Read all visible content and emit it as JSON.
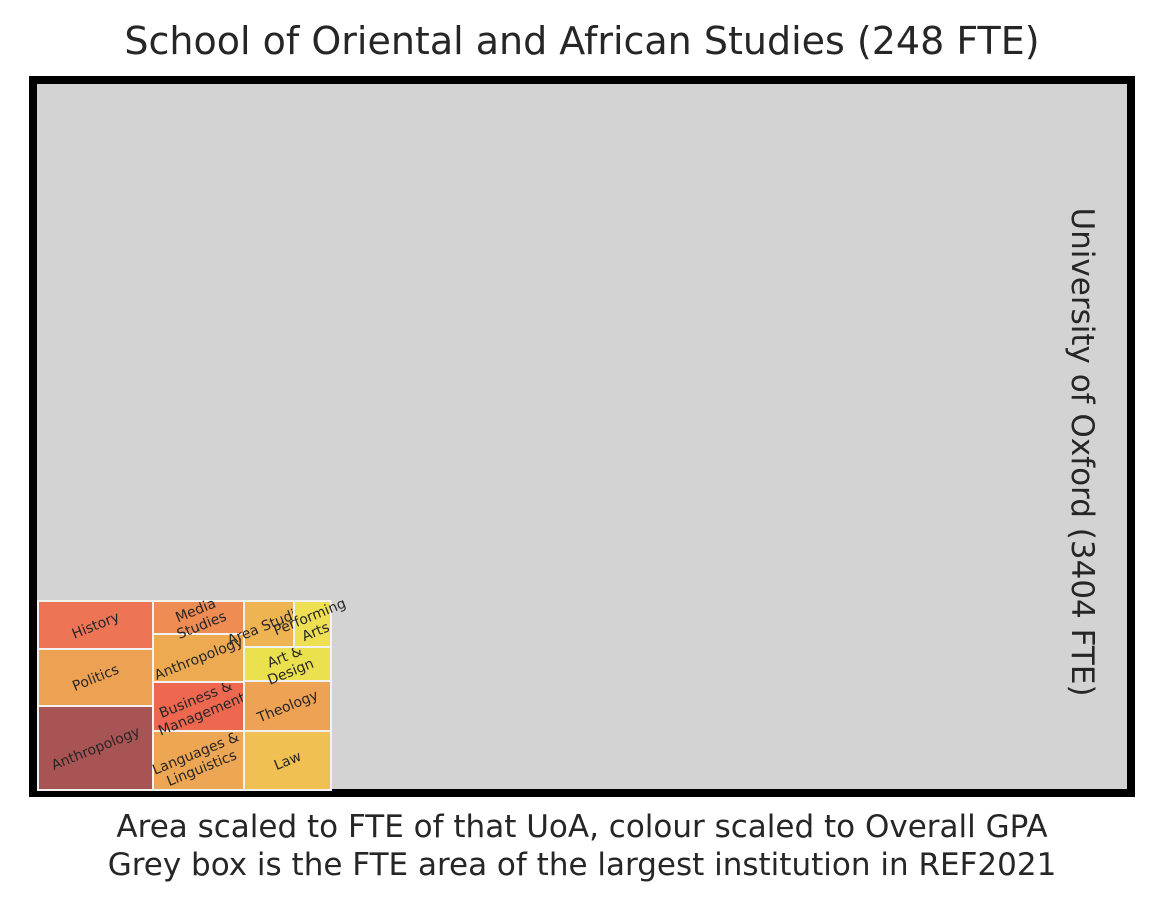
{
  "title": "School of Oriental and African Studies (248 FTE)",
  "reference_label": "University of Oxford (3404 FTE)",
  "caption": {
    "line1": "Area scaled to FTE of that UoA, colour scaled to Overall GPA",
    "line2": "Grey box is the FTE area of the largest institution in REF2021"
  },
  "chart_data": {
    "type": "treemap",
    "title": "School of Oriental and African Studies (248 FTE)",
    "total_fte": 248,
    "reference": {
      "name": "University of Oxford",
      "fte": 3404,
      "color": "#d3d3d3"
    },
    "cells": [
      {
        "label": "Anthropology",
        "lines": [
          "Anthropology"
        ],
        "fte": 37,
        "color": "#a95454"
      },
      {
        "label": "Politics",
        "lines": [
          "Politics"
        ],
        "fte": 28,
        "color": "#eda253"
      },
      {
        "label": "History",
        "lines": [
          "History"
        ],
        "fte": 23,
        "color": "#ee7456"
      },
      {
        "label": "Languages & Linguistics",
        "lines": [
          "Languages &",
          "Linguistics"
        ],
        "fte": 21,
        "color": "#eda653"
      },
      {
        "label": "Business & Management",
        "lines": [
          "Business &",
          "Management"
        ],
        "fte": 19,
        "color": "#ee6850"
      },
      {
        "label": "Anthropology",
        "lines": [
          "Anthropology"
        ],
        "fte": 18,
        "color": "#eeaa50"
      },
      {
        "label": "Media Studies",
        "lines": [
          "Media",
          "Studies"
        ],
        "fte": 12,
        "color": "#ee8c54"
      },
      {
        "label": "Law",
        "lines": [
          "Law"
        ],
        "fte": 20,
        "color": "#f0c052"
      },
      {
        "label": "Theology",
        "lines": [
          "Theology"
        ],
        "fte": 16,
        "color": "#eea254"
      },
      {
        "label": "Art & Design",
        "lines": [
          "Art &",
          "Design"
        ],
        "fte": 11,
        "color": "#ebe04e"
      },
      {
        "label": "Area Studies",
        "lines": [
          "Area Studies"
        ],
        "fte": 8,
        "color": "#efb452"
      },
      {
        "label": "Performing Arts",
        "lines": [
          "Performing",
          "Arts"
        ],
        "fte": 5,
        "color": "#eee052"
      }
    ]
  }
}
